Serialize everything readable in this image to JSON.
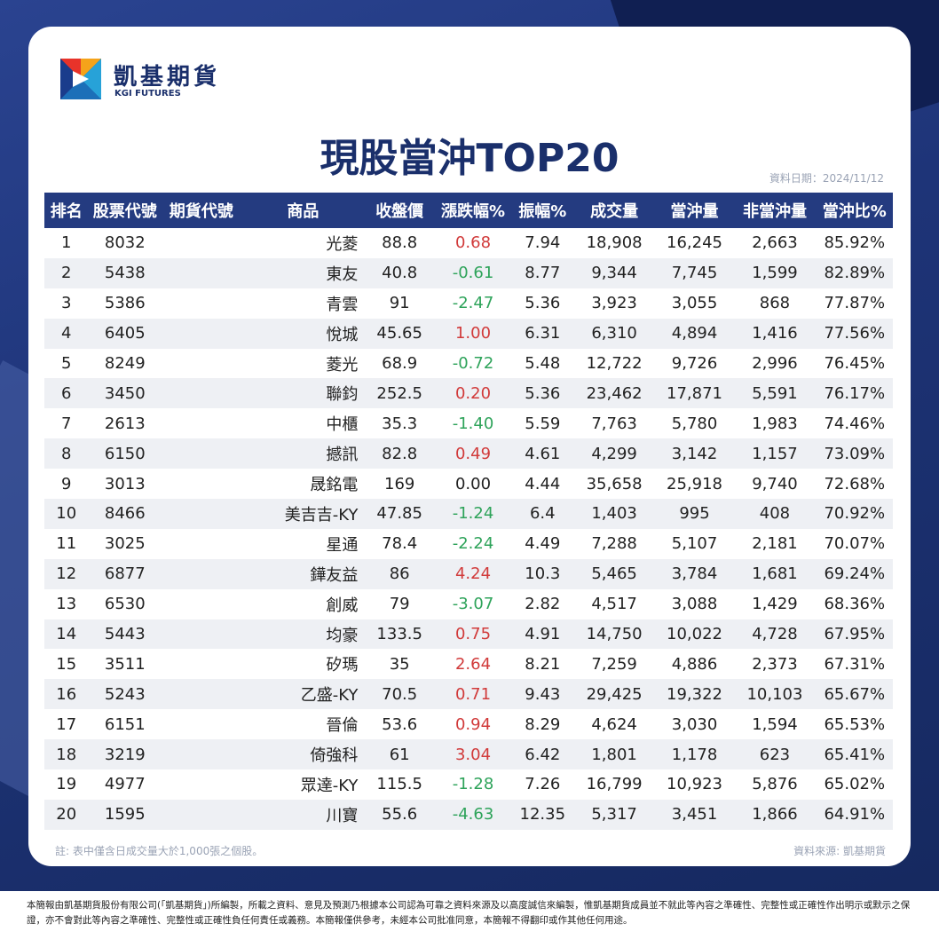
{
  "brand": {
    "name_zh": "凱基期貨",
    "name_en": "KGI FUTURES"
  },
  "title": "現股當沖TOP20",
  "date": "資料日期：2024/11/12",
  "columns": [
    "排名",
    "股票代號",
    "期貨代號",
    "商品",
    "收盤價",
    "漲跌幅%",
    "振幅%",
    "成交量",
    "當沖量",
    "非當沖量",
    "當沖比%"
  ],
  "rows": [
    {
      "rank": "1",
      "code": "8032",
      "fut": "",
      "name": "光菱",
      "close": "88.8",
      "chg": "0.68",
      "dir": "up",
      "amp": "7.94",
      "vol": "18,908",
      "dt": "16,245",
      "ndt": "2,663",
      "ratio": "85.92%"
    },
    {
      "rank": "2",
      "code": "5438",
      "fut": "",
      "name": "東友",
      "close": "40.8",
      "chg": "-0.61",
      "dir": "down",
      "amp": "8.77",
      "vol": "9,344",
      "dt": "7,745",
      "ndt": "1,599",
      "ratio": "82.89%"
    },
    {
      "rank": "3",
      "code": "5386",
      "fut": "",
      "name": "青雲",
      "close": "91",
      "chg": "-2.47",
      "dir": "down",
      "amp": "5.36",
      "vol": "3,923",
      "dt": "3,055",
      "ndt": "868",
      "ratio": "77.87%"
    },
    {
      "rank": "4",
      "code": "6405",
      "fut": "",
      "name": "悅城",
      "close": "45.65",
      "chg": "1.00",
      "dir": "up",
      "amp": "6.31",
      "vol": "6,310",
      "dt": "4,894",
      "ndt": "1,416",
      "ratio": "77.56%"
    },
    {
      "rank": "5",
      "code": "8249",
      "fut": "",
      "name": "菱光",
      "close": "68.9",
      "chg": "-0.72",
      "dir": "down",
      "amp": "5.48",
      "vol": "12,722",
      "dt": "9,726",
      "ndt": "2,996",
      "ratio": "76.45%"
    },
    {
      "rank": "6",
      "code": "3450",
      "fut": "",
      "name": "聯鈞",
      "close": "252.5",
      "chg": "0.20",
      "dir": "up",
      "amp": "5.36",
      "vol": "23,462",
      "dt": "17,871",
      "ndt": "5,591",
      "ratio": "76.17%"
    },
    {
      "rank": "7",
      "code": "2613",
      "fut": "",
      "name": "中櫃",
      "close": "35.3",
      "chg": "-1.40",
      "dir": "down",
      "amp": "5.59",
      "vol": "7,763",
      "dt": "5,780",
      "ndt": "1,983",
      "ratio": "74.46%"
    },
    {
      "rank": "8",
      "code": "6150",
      "fut": "",
      "name": "撼訊",
      "close": "82.8",
      "chg": "0.49",
      "dir": "up",
      "amp": "4.61",
      "vol": "4,299",
      "dt": "3,142",
      "ndt": "1,157",
      "ratio": "73.09%"
    },
    {
      "rank": "9",
      "code": "3013",
      "fut": "",
      "name": "晟銘電",
      "close": "169",
      "chg": "0.00",
      "dir": "flat",
      "amp": "4.44",
      "vol": "35,658",
      "dt": "25,918",
      "ndt": "9,740",
      "ratio": "72.68%"
    },
    {
      "rank": "10",
      "code": "8466",
      "fut": "",
      "name": "美吉吉-KY",
      "close": "47.85",
      "chg": "-1.24",
      "dir": "down",
      "amp": "6.4",
      "vol": "1,403",
      "dt": "995",
      "ndt": "408",
      "ratio": "70.92%"
    },
    {
      "rank": "11",
      "code": "3025",
      "fut": "",
      "name": "星通",
      "close": "78.4",
      "chg": "-2.24",
      "dir": "down",
      "amp": "4.49",
      "vol": "7,288",
      "dt": "5,107",
      "ndt": "2,181",
      "ratio": "70.07%"
    },
    {
      "rank": "12",
      "code": "6877",
      "fut": "",
      "name": "鏵友益",
      "close": "86",
      "chg": "4.24",
      "dir": "up",
      "amp": "10.3",
      "vol": "5,465",
      "dt": "3,784",
      "ndt": "1,681",
      "ratio": "69.24%"
    },
    {
      "rank": "13",
      "code": "6530",
      "fut": "",
      "name": "創威",
      "close": "79",
      "chg": "-3.07",
      "dir": "down",
      "amp": "2.82",
      "vol": "4,517",
      "dt": "3,088",
      "ndt": "1,429",
      "ratio": "68.36%"
    },
    {
      "rank": "14",
      "code": "5443",
      "fut": "",
      "name": "均豪",
      "close": "133.5",
      "chg": "0.75",
      "dir": "up",
      "amp": "4.91",
      "vol": "14,750",
      "dt": "10,022",
      "ndt": "4,728",
      "ratio": "67.95%"
    },
    {
      "rank": "15",
      "code": "3511",
      "fut": "",
      "name": "矽瑪",
      "close": "35",
      "chg": "2.64",
      "dir": "up",
      "amp": "8.21",
      "vol": "7,259",
      "dt": "4,886",
      "ndt": "2,373",
      "ratio": "67.31%"
    },
    {
      "rank": "16",
      "code": "5243",
      "fut": "",
      "name": "乙盛-KY",
      "close": "70.5",
      "chg": "0.71",
      "dir": "up",
      "amp": "9.43",
      "vol": "29,425",
      "dt": "19,322",
      "ndt": "10,103",
      "ratio": "65.67%"
    },
    {
      "rank": "17",
      "code": "6151",
      "fut": "",
      "name": "晉倫",
      "close": "53.6",
      "chg": "0.94",
      "dir": "up",
      "amp": "8.29",
      "vol": "4,624",
      "dt": "3,030",
      "ndt": "1,594",
      "ratio": "65.53%"
    },
    {
      "rank": "18",
      "code": "3219",
      "fut": "",
      "name": "倚強科",
      "close": "61",
      "chg": "3.04",
      "dir": "up",
      "amp": "6.42",
      "vol": "1,801",
      "dt": "1,178",
      "ndt": "623",
      "ratio": "65.41%"
    },
    {
      "rank": "19",
      "code": "4977",
      "fut": "",
      "name": "眾達-KY",
      "close": "115.5",
      "chg": "-1.28",
      "dir": "down",
      "amp": "7.26",
      "vol": "16,799",
      "dt": "10,923",
      "ndt": "5,876",
      "ratio": "65.02%"
    },
    {
      "rank": "20",
      "code": "1595",
      "fut": "",
      "name": "川寶",
      "close": "55.6",
      "chg": "-4.63",
      "dir": "down",
      "amp": "12.35",
      "vol": "5,317",
      "dt": "3,451",
      "ndt": "1,866",
      "ratio": "64.91%"
    }
  ],
  "note": "註: 表中僅含日成交量大於1,000張之個股。",
  "source": "資料來源: 凱基期貨",
  "disclaimer": "本簡報由凱基期貨股份有限公司(「凱基期貨」)所編製，所載之資料、意見及預測乃根據本公司認為可靠之資料來源及以高度誠信來編製，惟凱基期貨成員並不就此等內容之準確性、完整性或正確性作出明示或默示之保證，亦不會對此等內容之準確性、完整性或正確性負任何責任或義務。本簡報僅供參考，未經本公司批准同意，本簡報不得翻印或作其他任何用途。",
  "colors": {
    "up": "#d13a3a",
    "down": "#2ea35a",
    "header": "#243b80",
    "brand": "#1a2f6b"
  }
}
